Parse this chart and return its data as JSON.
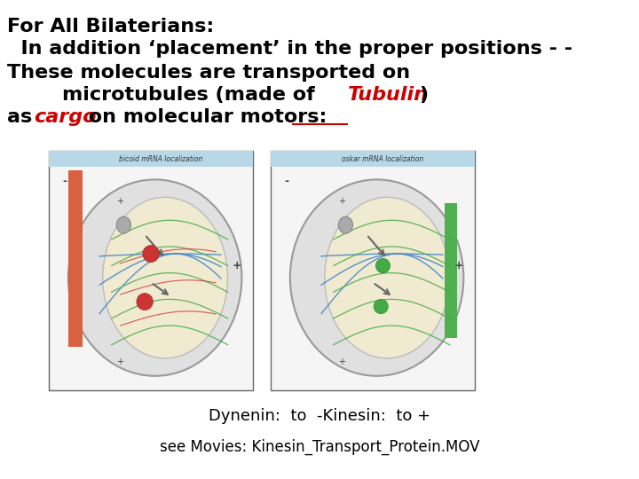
{
  "title_line1": "For All Bilaterians:",
  "title_line2": "  In addition ‘placement’ in the proper positions - -",
  "title_line3": "These molecules are transported on",
  "title_line4_pre": "        microtubules (made of ",
  "title_line4_italic": "Tubulin",
  "title_line4_end": ")",
  "title_line5_pre": "as ",
  "title_line5_italic": "cargo",
  "title_line5_post": " on molecular motors:",
  "title_line5_underline": "motors",
  "bottom_line1": "Dynenin:  to  -Kinesin:  to +",
  "bottom_line2": "see Movies: Kinesin_Transport_Protein.MOV",
  "bg_color": "#ffffff",
  "text_color": "#000000",
  "red_color": "#cc0000",
  "font_size_main": 16,
  "font_size_bottom": 13,
  "label1": "bicoid mRNA localization",
  "label2": "oskar mRNA localization"
}
